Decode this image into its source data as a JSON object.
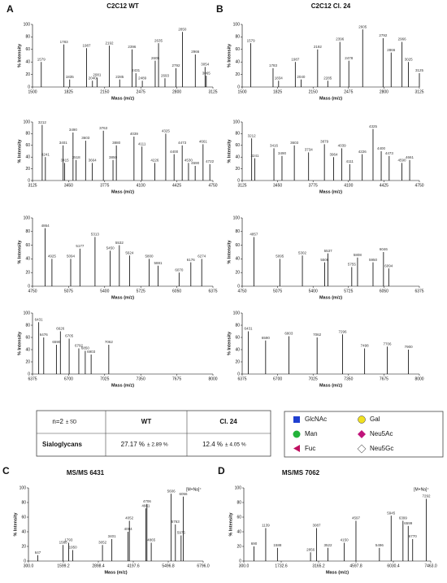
{
  "chart_data": [
    {
      "type": "spectrum",
      "panel": "A",
      "title": "C2C12 WT",
      "x_label": "Mass (m/z)",
      "y_label": "% Intensity",
      "xlim": [
        1500,
        3125
      ],
      "xticks": [
        1500,
        1825,
        2150,
        2475,
        2800,
        3125
      ],
      "ylim": [
        0,
        100
      ],
      "yticks": [
        0,
        20,
        40,
        60,
        80,
        100
      ],
      "color": "#000000",
      "x": [
        1579,
        1783,
        1835,
        1987,
        2040,
        2081,
        2192,
        2285,
        2396,
        2431,
        2489,
        2605,
        2635,
        2693,
        2792,
        2850,
        2966,
        3054,
        3065
      ],
      "values": [
        40,
        68,
        12,
        62,
        10,
        15,
        66,
        12,
        60,
        22,
        10,
        42,
        70,
        14,
        30,
        88,
        52,
        32,
        18
      ]
    },
    {
      "type": "spectrum",
      "x_label": "Mass (m/z)",
      "y_label": "% Intensity",
      "xlim": [
        3125,
        4750
      ],
      "xticks": [
        3125,
        3450,
        3775,
        4100,
        4425,
        4750
      ],
      "ylim": [
        0,
        100
      ],
      "yticks": [
        0,
        20,
        40,
        60,
        80,
        100
      ],
      "color": "#000000",
      "x": [
        3212,
        3241,
        3401,
        3415,
        3490,
        3518,
        3603,
        3664,
        3763,
        3850,
        3880,
        4039,
        4111,
        4226,
        4325,
        4400,
        4473,
        4530,
        4590,
        4661,
        4722
      ],
      "values": [
        95,
        40,
        60,
        30,
        82,
        35,
        68,
        30,
        85,
        35,
        60,
        75,
        58,
        30,
        80,
        45,
        60,
        30,
        25,
        62,
        28
      ]
    },
    {
      "type": "spectrum",
      "x_label": "Mass (m/z)",
      "y_label": "% Intensity",
      "xlim": [
        4750,
        6375
      ],
      "xticks": [
        4750,
        5075,
        5400,
        5725,
        6050,
        6375
      ],
      "ylim": [
        0,
        100
      ],
      "yticks": [
        0,
        20,
        40,
        60,
        80,
        100
      ],
      "color": "#000000",
      "x": [
        4864,
        4925,
        5094,
        5177,
        5313,
        5450,
        5532,
        5624,
        5800,
        5881,
        6070,
        6176,
        6274
      ],
      "values": [
        85,
        40,
        40,
        55,
        72,
        52,
        60,
        45,
        40,
        30,
        20,
        35,
        40
      ]
    },
    {
      "type": "spectrum",
      "x_label": "Mass (m/z)",
      "y_label": "% Intensity",
      "xlim": [
        6375,
        8000
      ],
      "xticks": [
        6375,
        6700,
        7025,
        7350,
        7675,
        8000
      ],
      "ylim": [
        0,
        100
      ],
      "yticks": [
        0,
        20,
        40,
        60,
        80,
        100
      ],
      "color": "#000000",
      "x": [
        6431,
        6476,
        6590,
        6626,
        6705,
        6792,
        6850,
        6903,
        7062
      ],
      "values": [
        85,
        60,
        48,
        70,
        58,
        42,
        38,
        32,
        48
      ]
    },
    {
      "type": "spectrum",
      "panel": "B",
      "title": "C2C12 Cl. 24",
      "x_label": "Mass (m/z)",
      "y_label": "% Intensity",
      "xlim": [
        1500,
        3125
      ],
      "xticks": [
        1500,
        1825,
        2150,
        2475,
        2800,
        3125
      ],
      "ylim": [
        0,
        100
      ],
      "yticks": [
        0,
        20,
        40,
        60,
        80,
        100
      ],
      "color": "#000000",
      "x": [
        1579,
        1783,
        1834,
        1987,
        2040,
        2192,
        2285,
        2396,
        2478,
        2605,
        2792,
        2866,
        2966,
        3025,
        3125
      ],
      "values": [
        70,
        30,
        10,
        40,
        12,
        60,
        10,
        72,
        42,
        92,
        78,
        55,
        72,
        40,
        22
      ]
    },
    {
      "type": "spectrum",
      "x_label": "Mass (m/z)",
      "y_label": "% Intensity",
      "xlim": [
        3125,
        4750
      ],
      "xticks": [
        3125,
        3450,
        3775,
        4100,
        4425,
        4750
      ],
      "ylim": [
        0,
        100
      ],
      "yticks": [
        0,
        20,
        40,
        60,
        80,
        100
      ],
      "color": "#000000",
      "x": [
        3212,
        3241,
        3416,
        3490,
        3603,
        3734,
        3879,
        3964,
        4039,
        4111,
        4226,
        4325,
        4400,
        4473,
        4590,
        4661
      ],
      "values": [
        72,
        38,
        55,
        42,
        60,
        48,
        62,
        40,
        55,
        28,
        45,
        88,
        50,
        42,
        30,
        35
      ]
    },
    {
      "type": "spectrum",
      "x_label": "Mass (m/z)",
      "y_label": "% Intensity",
      "xlim": [
        4750,
        6375
      ],
      "xticks": [
        4750,
        5075,
        5400,
        5725,
        6050,
        6375
      ],
      "ylim": [
        0,
        100
      ],
      "yticks": [
        0,
        20,
        40,
        60,
        80,
        100
      ],
      "color": "#000000",
      "x": [
        4857,
        5095,
        5302,
        5506,
        5537,
        5755,
        5808,
        5950,
        6046,
        6094
      ],
      "values": [
        72,
        40,
        45,
        35,
        48,
        28,
        42,
        35,
        50,
        26
      ]
    },
    {
      "type": "spectrum",
      "x_label": "Mass (m/z)",
      "y_label": "% Intensity",
      "xlim": [
        6375,
        8000
      ],
      "xticks": [
        6375,
        6700,
        7025,
        7350,
        7675,
        8000
      ],
      "ylim": [
        0,
        100
      ],
      "yticks": [
        0,
        20,
        40,
        60,
        80,
        100
      ],
      "color": "#000000",
      "x": [
        6431,
        6590,
        6803,
        7062,
        7296,
        7498,
        7706,
        7900
      ],
      "values": [
        70,
        55,
        62,
        60,
        65,
        42,
        45,
        40
      ]
    },
    {
      "type": "spectrum",
      "panel": "C",
      "title": "MS/MS 6431",
      "annotation": "[M+Na]⁺",
      "x_label": "Mass (m/z)",
      "y_label": "% Intensity",
      "xlim": [
        300,
        6796
      ],
      "xticks": [
        {
          "value": 300,
          "label": "300.0"
        },
        {
          "value": 1599.2,
          "label": "1599.2"
        },
        {
          "value": 2898.4,
          "label": "2898.4"
        },
        {
          "value": 4197.6,
          "label": "4197.6"
        },
        {
          "value": 5496.8,
          "label": "5496.8"
        },
        {
          "value": 6796,
          "label": "6796.0"
        }
      ],
      "ylim": [
        0,
        100
      ],
      "yticks": [
        0,
        20,
        40,
        60,
        80,
        100
      ],
      "color": "#000000",
      "x": [
        647,
        1588,
        1793,
        1950,
        3052,
        3401,
        4004,
        4052,
        4661,
        4706,
        4865,
        5606,
        5763,
        5975,
        6056
      ],
      "values": [
        8,
        22,
        25,
        15,
        22,
        30,
        40,
        55,
        72,
        78,
        25,
        92,
        50,
        35,
        88
      ]
    },
    {
      "type": "spectrum",
      "panel": "D",
      "title": "MS/MS 7062",
      "annotation": "[M+Na]⁺",
      "x_label": "Mass (m/z)",
      "y_label": "% Intensity",
      "xlim": [
        300,
        7463
      ],
      "xticks": [
        {
          "value": 300,
          "label": "300.0"
        },
        {
          "value": 1732.6,
          "label": "1732.6"
        },
        {
          "value": 3165.2,
          "label": "3165.2"
        },
        {
          "value": 4597.8,
          "label": "4597.8"
        },
        {
          "value": 6030.4,
          "label": "6030.4"
        },
        {
          "value": 7463,
          "label": "7463.0"
        }
      ],
      "ylim": [
        0,
        100
      ],
      "yticks": [
        0,
        20,
        40,
        60,
        80,
        100
      ],
      "color": "#000000",
      "x": [
        690,
        1139,
        1588,
        2856,
        3087,
        3522,
        4150,
        4597,
        5496,
        5945,
        6399,
        6599,
        6770,
        7292
      ],
      "values": [
        20,
        45,
        18,
        12,
        45,
        18,
        25,
        55,
        18,
        62,
        55,
        48,
        30,
        85
      ]
    }
  ],
  "table": {
    "header": [
      "n=2",
      "± SD",
      "WT",
      "Cl. 24"
    ],
    "rows": [
      [
        "Sialoglycans",
        "27.17 %",
        "± 2.89 %",
        "12.4 %",
        "± 4.05 %"
      ]
    ]
  },
  "legend": [
    "GlcNAc",
    "Gal",
    "Man",
    "Neu5Ac",
    "Fuc",
    "Neu5Gc"
  ]
}
